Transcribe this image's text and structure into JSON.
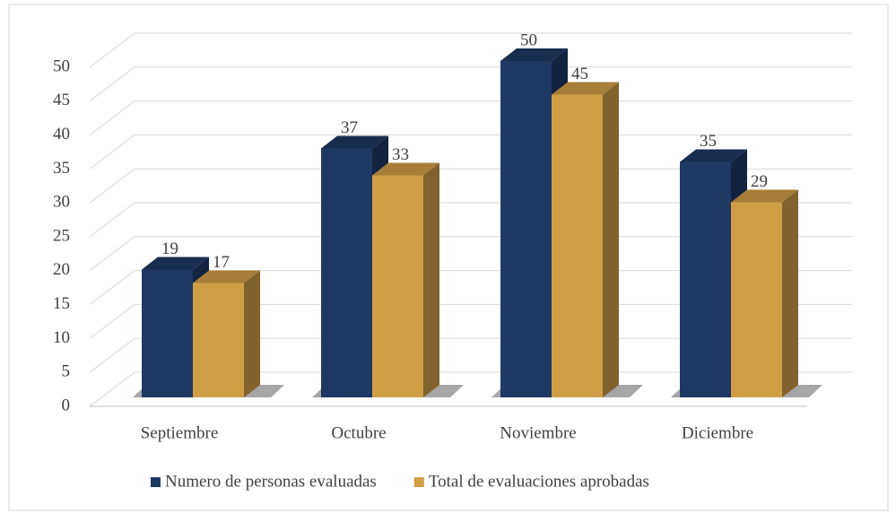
{
  "chart_data": {
    "type": "bar3d",
    "categories": [
      "Septiembre",
      "Octubre",
      "Noviembre",
      "Diciembre"
    ],
    "series": [
      {
        "name": "Numero de personas evaluadas",
        "color": "#1f3864",
        "values": [
          19,
          37,
          50,
          35
        ]
      },
      {
        "name": "Total de evaluaciones aprobadas",
        "color": "#d09e47",
        "values": [
          17,
          33,
          45,
          29
        ]
      }
    ],
    "ylim": [
      0,
      50
    ],
    "yticks": [
      0,
      5,
      10,
      15,
      20,
      25,
      30,
      35,
      40,
      45,
      50
    ],
    "grid": true,
    "legend": "bottom"
  }
}
